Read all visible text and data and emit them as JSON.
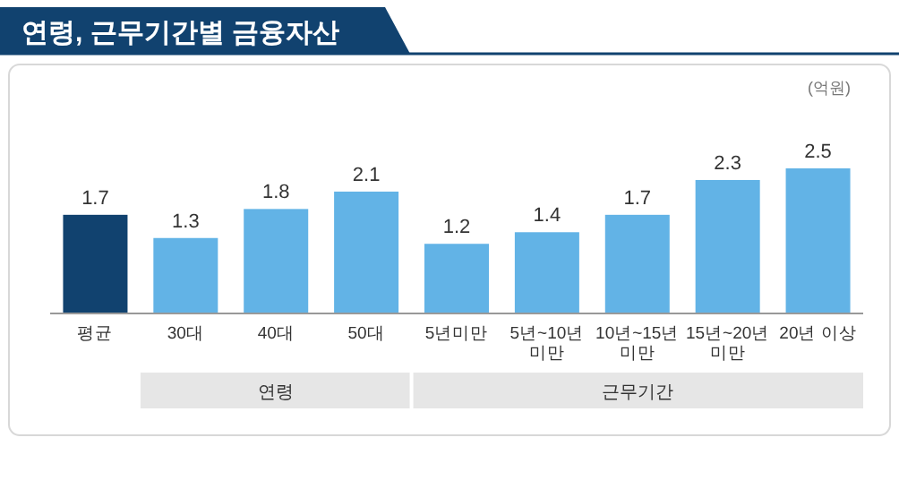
{
  "chart_data": {
    "type": "bar",
    "title": "연령, 근무기간별 금융자산",
    "ylabel": "(억원)",
    "categories": [
      "평균",
      "30대",
      "40대",
      "50대",
      "5년미만",
      "5년~10년\n미만",
      "10년~15년\n미만",
      "15년~20년\n미만",
      "20년 이상"
    ],
    "values": [
      1.7,
      1.3,
      1.8,
      2.1,
      1.2,
      1.4,
      1.7,
      2.3,
      2.5
    ],
    "colors": [
      "#11426f",
      "#62b3e6",
      "#62b3e6",
      "#62b3e6",
      "#62b3e6",
      "#62b3e6",
      "#62b3e6",
      "#62b3e6",
      "#62b3e6"
    ],
    "data_labels": true,
    "annotations": [
      "연령",
      "근무기간"
    ]
  }
}
